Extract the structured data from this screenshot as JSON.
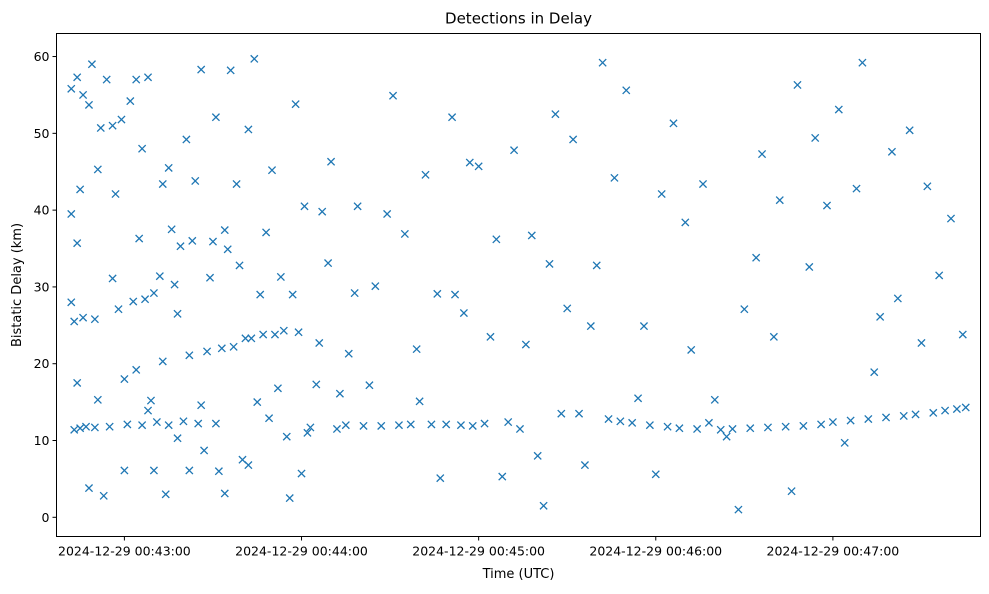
{
  "chart_data": {
    "type": "scatter",
    "title": "Detections in Delay",
    "xlabel": "Time (UTC)",
    "ylabel": "Bistatic Delay (km)",
    "x_axis_kind": "time",
    "x_tick_labels": [
      "2024-12-29 00:43:00",
      "2024-12-29 00:44:00",
      "2024-12-29 00:45:00",
      "2024-12-29 00:46:00",
      "2024-12-29 00:47:00"
    ],
    "x_ticks": [
      "00:43:00",
      "00:44:00",
      "00:45:00",
      "00:46:00",
      "00:47:00"
    ],
    "xlim": [
      "00:42:37",
      "00:47:50"
    ],
    "y_ticks": [
      0,
      10,
      20,
      30,
      40,
      50,
      60
    ],
    "ylim": [
      -2.5,
      63.0
    ],
    "grid": false,
    "legend": "none",
    "marker": "x",
    "color": "#1f77b4",
    "series": [
      {
        "x": [
          "00:42:42",
          "00:42:42",
          "00:42:42",
          "00:42:43",
          "00:42:43",
          "00:42:44",
          "00:42:44",
          "00:42:44",
          "00:42:45",
          "00:42:45",
          "00:42:46",
          "00:42:46",
          "00:42:47",
          "00:42:48",
          "00:42:48",
          "00:42:49",
          "00:42:50",
          "00:42:50",
          "00:42:51",
          "00:42:51",
          "00:42:52",
          "00:42:53",
          "00:42:54",
          "00:42:55",
          "00:42:56",
          "00:42:56",
          "00:42:57",
          "00:42:58",
          "00:42:59",
          "00:43:00",
          "00:43:00",
          "00:43:01",
          "00:43:02",
          "00:43:03",
          "00:43:04",
          "00:43:04",
          "00:43:05",
          "00:43:06",
          "00:43:06",
          "00:43:07",
          "00:43:08",
          "00:43:08",
          "00:43:09",
          "00:43:10",
          "00:43:10",
          "00:43:11",
          "00:43:12",
          "00:43:13",
          "00:43:13",
          "00:43:14",
          "00:43:15",
          "00:43:15",
          "00:43:16",
          "00:43:17",
          "00:43:18",
          "00:43:18",
          "00:43:19",
          "00:43:20",
          "00:43:21",
          "00:43:22",
          "00:43:22",
          "00:43:23",
          "00:43:24",
          "00:43:25",
          "00:43:26",
          "00:43:26",
          "00:43:27",
          "00:43:28",
          "00:43:29",
          "00:43:30",
          "00:43:31",
          "00:43:31",
          "00:43:32",
          "00:43:33",
          "00:43:34",
          "00:43:34",
          "00:43:35",
          "00:43:36",
          "00:43:37",
          "00:43:38",
          "00:43:39",
          "00:43:40",
          "00:43:41",
          "00:43:42",
          "00:43:42",
          "00:43:43",
          "00:43:44",
          "00:43:45",
          "00:43:46",
          "00:43:47",
          "00:43:48",
          "00:43:49",
          "00:43:50",
          "00:43:51",
          "00:43:52",
          "00:43:53",
          "00:43:54",
          "00:43:55",
          "00:43:56",
          "00:43:57",
          "00:43:58",
          "00:43:59",
          "00:44:00",
          "00:44:01",
          "00:44:02",
          "00:44:03",
          "00:44:05",
          "00:44:06",
          "00:44:07",
          "00:44:09",
          "00:44:10",
          "00:44:12",
          "00:44:13",
          "00:44:15",
          "00:44:16",
          "00:44:18",
          "00:44:19",
          "00:44:21",
          "00:44:23",
          "00:44:25",
          "00:44:27",
          "00:44:29",
          "00:44:31",
          "00:44:33",
          "00:44:35",
          "00:44:37",
          "00:44:39",
          "00:44:40",
          "00:44:42",
          "00:44:44",
          "00:44:46",
          "00:44:47",
          "00:44:49",
          "00:44:51",
          "00:44:52",
          "00:44:54",
          "00:44:55",
          "00:44:57",
          "00:44:58",
          "00:45:00",
          "00:45:02",
          "00:45:04",
          "00:45:06",
          "00:45:08",
          "00:45:10",
          "00:45:12",
          "00:45:14",
          "00:45:16",
          "00:45:18",
          "00:45:20",
          "00:45:22",
          "00:45:24",
          "00:45:26",
          "00:45:28",
          "00:45:30",
          "00:45:32",
          "00:45:34",
          "00:45:36",
          "00:45:38",
          "00:45:40",
          "00:45:42",
          "00:45:44",
          "00:45:46",
          "00:45:48",
          "00:45:50",
          "00:45:52",
          "00:45:54",
          "00:45:56",
          "00:45:58",
          "00:46:00",
          "00:46:02",
          "00:46:04",
          "00:46:06",
          "00:46:08",
          "00:46:10",
          "00:46:12",
          "00:46:14",
          "00:46:16",
          "00:46:18",
          "00:46:20",
          "00:46:22",
          "00:46:24",
          "00:46:26",
          "00:46:28",
          "00:46:30",
          "00:46:32",
          "00:46:34",
          "00:46:36",
          "00:46:38",
          "00:46:40",
          "00:46:42",
          "00:46:44",
          "00:46:46",
          "00:46:48",
          "00:46:50",
          "00:46:52",
          "00:46:54",
          "00:46:56",
          "00:46:58",
          "00:47:00",
          "00:47:02",
          "00:47:04",
          "00:47:06",
          "00:47:08",
          "00:47:10",
          "00:47:12",
          "00:47:14",
          "00:47:16",
          "00:47:18",
          "00:47:20",
          "00:47:22",
          "00:47:24",
          "00:47:26",
          "00:47:28",
          "00:47:30",
          "00:47:32",
          "00:47:34",
          "00:47:36",
          "00:47:38",
          "00:47:40",
          "00:47:42",
          "00:47:44",
          "00:47:45"
        ],
        "y": [
          55.8,
          39.5,
          28.0,
          25.5,
          11.4,
          57.3,
          35.7,
          17.5,
          42.7,
          11.6,
          55.0,
          26.0,
          11.8,
          53.7,
          3.8,
          59.0,
          25.8,
          11.7,
          45.3,
          15.3,
          50.7,
          2.8,
          57.0,
          11.8,
          51.0,
          31.1,
          42.1,
          27.1,
          51.8,
          6.1,
          18.0,
          12.1,
          54.2,
          28.1,
          57.0,
          19.2,
          36.3,
          12.0,
          48.0,
          28.4,
          57.3,
          13.9,
          15.2,
          29.2,
          6.1,
          12.4,
          31.4,
          43.4,
          20.3,
          3.0,
          45.5,
          12.0,
          37.5,
          30.3,
          10.3,
          26.5,
          35.3,
          12.5,
          49.2,
          21.1,
          6.1,
          36.0,
          43.8,
          12.2,
          58.3,
          14.6,
          8.7,
          21.6,
          31.2,
          35.9,
          12.2,
          52.1,
          6.0,
          22.0,
          37.4,
          3.1,
          34.9,
          58.2,
          22.2,
          43.4,
          32.8,
          7.5,
          23.3,
          50.5,
          6.8,
          23.3,
          59.7,
          15.0,
          29.0,
          23.8,
          37.1,
          12.9,
          45.2,
          23.8,
          16.8,
          31.3,
          24.3,
          10.5,
          2.5,
          29.0,
          53.8,
          24.1,
          5.7,
          40.5,
          11.0,
          11.7,
          17.3,
          22.7,
          39.8,
          33.1,
          46.3,
          11.5,
          16.1,
          12.0,
          21.3,
          29.2,
          40.5,
          11.9,
          17.2,
          30.1,
          11.9,
          39.5,
          54.9,
          12.0,
          36.9,
          12.1,
          21.9,
          15.1,
          44.6,
          12.1,
          29.1,
          5.1,
          12.1,
          52.1,
          29.0,
          12.0,
          26.6,
          46.2,
          11.9,
          45.7,
          12.2,
          23.5,
          36.2,
          5.3,
          12.4,
          47.8,
          11.5,
          22.5,
          36.7,
          8.0,
          1.5,
          33.0,
          52.5,
          13.5,
          27.2,
          49.2,
          13.5,
          6.8,
          24.9,
          32.8,
          59.2,
          12.8,
          44.2,
          12.5,
          55.6,
          12.3,
          15.5,
          24.9,
          12.0,
          5.6,
          42.1,
          11.8,
          51.3,
          11.6,
          38.4,
          21.8,
          11.5,
          43.4,
          12.3,
          15.3,
          11.4,
          10.5,
          11.5,
          1.0,
          27.1,
          11.6,
          33.8,
          47.3,
          11.7,
          23.5,
          41.3,
          11.8,
          3.4,
          56.3,
          11.9,
          32.6,
          49.4,
          12.1,
          40.6,
          12.4,
          53.1,
          9.7,
          12.6,
          42.8,
          59.2,
          12.8,
          18.9,
          26.1,
          13.0,
          47.6,
          28.5,
          13.2,
          50.4,
          13.4,
          22.7,
          43.1,
          13.6,
          31.5,
          13.9,
          38.9,
          14.1,
          23.8,
          14.3
        ]
      }
    ]
  }
}
